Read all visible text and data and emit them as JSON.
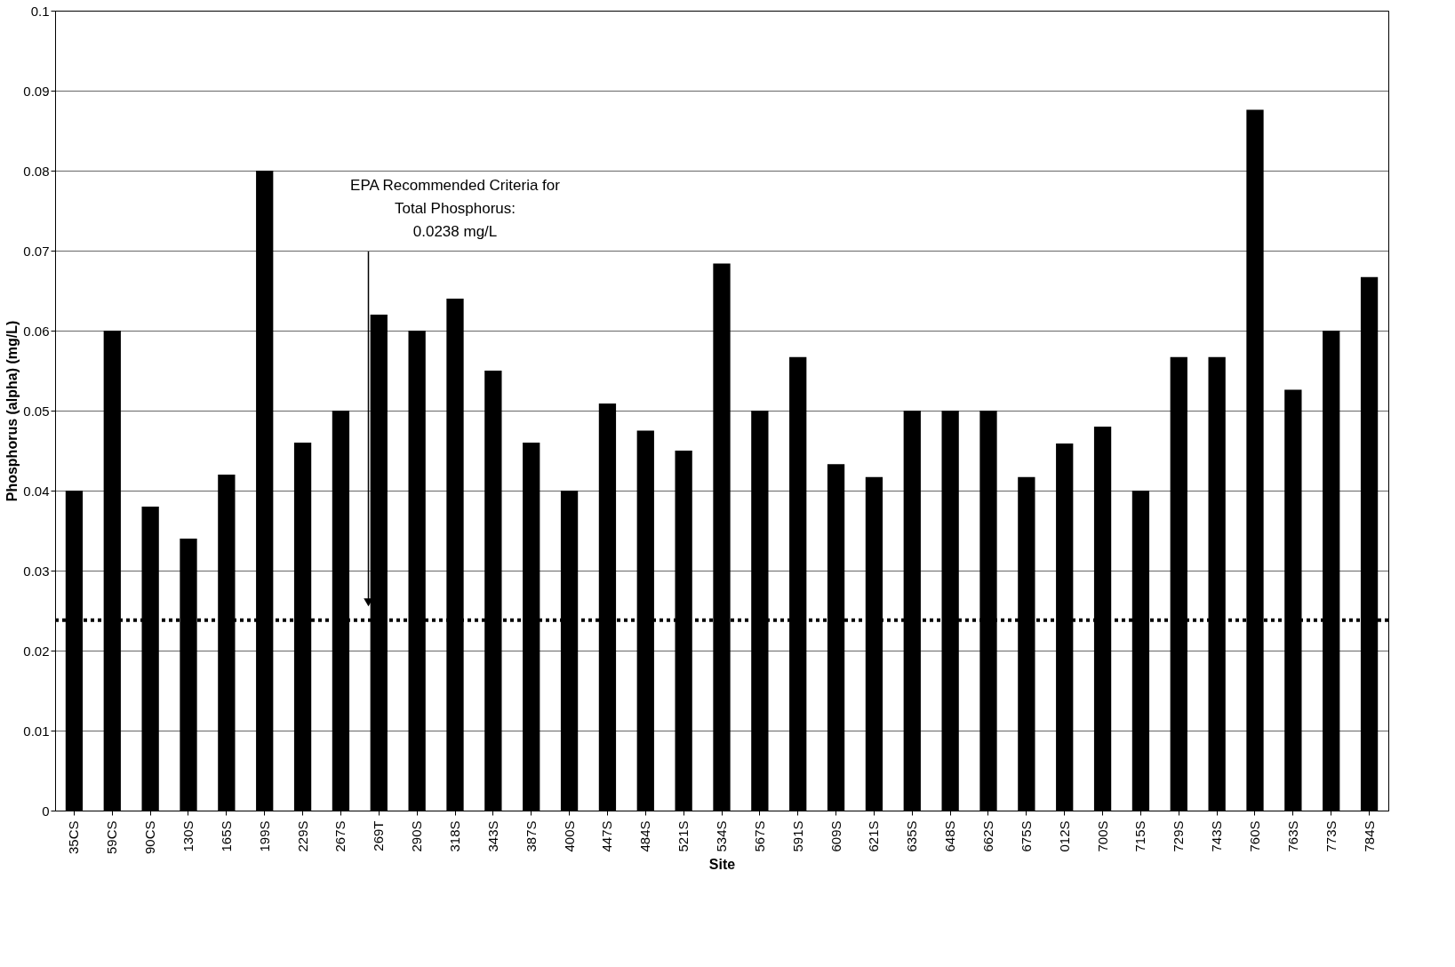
{
  "chart_data": {
    "type": "bar",
    "xlabel": "Site",
    "ylabel": "Phosphorus (alpha) (mg/L)",
    "categories": [
      "35CS",
      "59CS",
      "90CS",
      "130S",
      "165S",
      "199S",
      "229S",
      "267S",
      "269T",
      "290S",
      "318S",
      "343S",
      "387S",
      "400S",
      "447S",
      "484S",
      "521S",
      "534S",
      "567S",
      "591S",
      "609S",
      "621S",
      "635S",
      "648S",
      "662S",
      "675S",
      "012S",
      "700S",
      "715S",
      "729S",
      "743S",
      "760S",
      "763S",
      "773S",
      "784S"
    ],
    "values": [
      0.04,
      0.06,
      0.038,
      0.034,
      0.042,
      0.08,
      0.046,
      0.05,
      0.062,
      0.06,
      0.064,
      0.055,
      0.046,
      0.04,
      0.0509,
      0.0475,
      0.045,
      0.0684,
      0.05,
      0.0567,
      0.0433,
      0.0417,
      0.05,
      0.05,
      0.05,
      0.0417,
      0.0459,
      0.048,
      0.04,
      0.0567,
      0.0567,
      0.0876,
      0.0526,
      0.06,
      0.0667
    ],
    "color": "#000000",
    "ylim": [
      0,
      0.1
    ],
    "yticks": [
      0,
      0.01,
      0.02,
      0.03,
      0.04,
      0.05,
      0.06,
      0.07,
      0.08,
      0.09,
      0.1
    ],
    "grid": "y",
    "ref_lines": [
      {
        "axis": "y",
        "value": 0.0238,
        "color": "#000000",
        "line_style": "dotted"
      }
    ],
    "annotations": [
      "EPA Recommended Criteria for\nTotal Phosphorus:\n0.0238 mg/L"
    ]
  }
}
